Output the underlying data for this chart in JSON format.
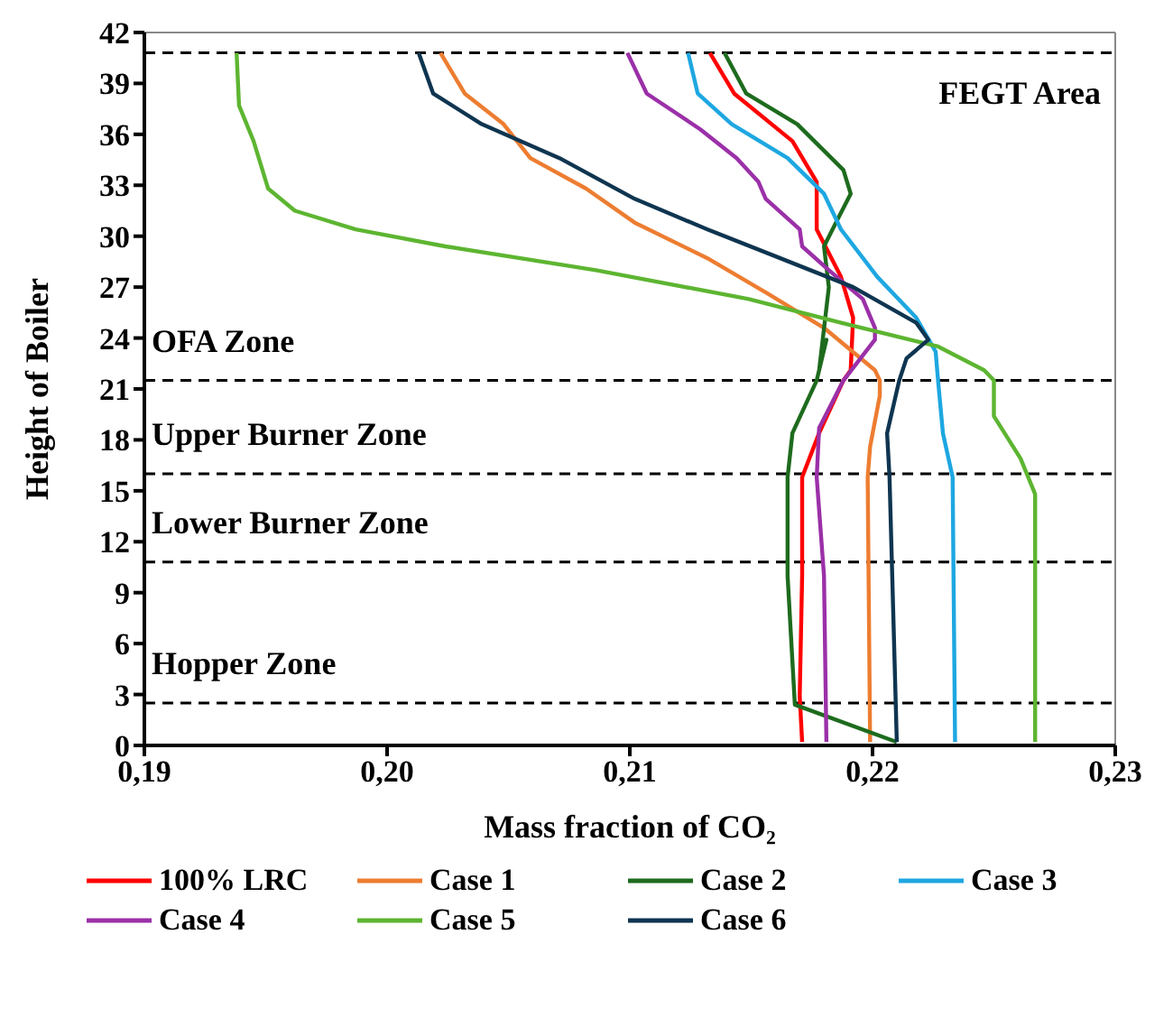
{
  "chart_data": {
    "type": "line",
    "xlabel": "Mass fraction of CO₂",
    "ylabel": "Height of Boiler",
    "xlim": [
      0.19,
      0.23
    ],
    "xticks": [
      {
        "value": 0.19,
        "label": "0,19"
      },
      {
        "value": 0.2,
        "label": "0,20"
      },
      {
        "value": 0.21,
        "label": "0,21"
      },
      {
        "value": 0.22,
        "label": "0,22"
      },
      {
        "value": 0.23,
        "label": "0,23"
      }
    ],
    "ylim": [
      0,
      42
    ],
    "yticks": [
      0,
      3,
      6,
      9,
      12,
      15,
      18,
      21,
      24,
      27,
      30,
      33,
      36,
      39,
      42
    ],
    "grid": false,
    "legend": "bottom",
    "marker": "none",
    "line_style": "solid",
    "series": [
      {
        "name": "100% LRC",
        "color": "#ff0000",
        "x": [
          0.2133,
          0.2143,
          0.2167,
          0.2177,
          0.2177,
          0.2187,
          0.2192,
          0.2191,
          0.2188,
          0.2178,
          0.2171,
          0.2171,
          0.217,
          0.2171
        ],
        "values": [
          40.8,
          38.4,
          35.6,
          33.2,
          30.4,
          27.6,
          25.2,
          22.1,
          21.5,
          18.4,
          15.8,
          10,
          2.9,
          0.2
        ]
      },
      {
        "name": "Case 1",
        "color": "#ed7d31",
        "x": [
          0.2022,
          0.2032,
          0.2048,
          0.2059,
          0.2082,
          0.2102,
          0.2132,
          0.2157,
          0.218,
          0.2201,
          0.2203,
          0.2203,
          0.2199,
          0.2198,
          0.2199
        ],
        "values": [
          40.8,
          38.4,
          36.6,
          34.6,
          32.8,
          30.8,
          28.7,
          26.6,
          24.6,
          22.1,
          21.5,
          20.6,
          17.6,
          15.8,
          0.2
        ]
      },
      {
        "name": "Case 2",
        "color": "#1e6b1e",
        "x": [
          0.2139,
          0.2148,
          0.2169,
          0.2188,
          0.2191,
          0.2186,
          0.218,
          0.2182,
          0.2178,
          0.2181,
          0.2177,
          0.2167,
          0.2165,
          0.2165,
          0.2168,
          0.221
        ],
        "values": [
          40.8,
          38.4,
          36.6,
          33.9,
          32.5,
          31.1,
          29.4,
          27,
          22.1,
          23.9,
          21.5,
          18.4,
          15.8,
          10,
          2.4,
          0.2
        ]
      },
      {
        "name": "Case 3",
        "color": "#1ea7e1",
        "x": [
          0.2124,
          0.2128,
          0.2142,
          0.2165,
          0.218,
          0.2187,
          0.2202,
          0.2218,
          0.2226,
          0.2227,
          0.2229,
          0.2233,
          0.2234
        ],
        "values": [
          40.8,
          38.4,
          36.6,
          34.6,
          32.5,
          30.4,
          27.6,
          25.2,
          23.2,
          21.5,
          18.4,
          15.8,
          0.2
        ]
      },
      {
        "name": "Case 4",
        "color": "#9b30a8",
        "x": [
          0.2099,
          0.2107,
          0.2129,
          0.2144,
          0.2153,
          0.2156,
          0.217,
          0.2171,
          0.2182,
          0.2196,
          0.2201,
          0.2201,
          0.2188,
          0.2178,
          0.2177,
          0.218,
          0.2181
        ],
        "values": [
          40.8,
          38.4,
          36.3,
          34.6,
          33.2,
          32.2,
          30.4,
          29.4,
          28,
          26.3,
          24.6,
          23.9,
          21.5,
          18.7,
          15.8,
          10,
          0.2
        ]
      },
      {
        "name": "Case 5",
        "color": "#5db531",
        "x": [
          0.1938,
          0.1939,
          0.1945,
          0.1951,
          0.1962,
          0.1987,
          0.2024,
          0.2086,
          0.2149,
          0.2187,
          0.2227,
          0.2246,
          0.225,
          0.225,
          0.2261,
          0.2267,
          0.2267
        ],
        "values": [
          40.8,
          37.7,
          35.6,
          32.8,
          31.5,
          30.4,
          29.4,
          28,
          26.3,
          24.9,
          23.5,
          22.1,
          21.5,
          19.4,
          16.9,
          14.8,
          0.2
        ]
      },
      {
        "name": "Case 6",
        "color": "#0f3550",
        "x": [
          0.2013,
          0.2019,
          0.2039,
          0.2071,
          0.2102,
          0.2132,
          0.2162,
          0.2192,
          0.2218,
          0.2223,
          0.2214,
          0.2211,
          0.2206,
          0.2207,
          0.221
        ],
        "values": [
          40.8,
          38.4,
          36.6,
          34.6,
          32.2,
          30.4,
          28.7,
          27,
          24.9,
          23.9,
          22.8,
          21.5,
          18.4,
          15.8,
          0.2
        ]
      }
    ],
    "ref_lines": [
      {
        "axis": "y",
        "value": 40.8,
        "color": "#000000",
        "line_style": "dashed"
      },
      {
        "axis": "y",
        "value": 21.5,
        "color": "#000000",
        "line_style": "dashed"
      },
      {
        "axis": "y",
        "value": 16,
        "color": "#000000",
        "line_style": "dashed"
      },
      {
        "axis": "y",
        "value": 10.8,
        "color": "#000000",
        "line_style": "dashed"
      },
      {
        "axis": "y",
        "value": 2.5,
        "color": "#000000",
        "line_style": "dashed"
      }
    ],
    "annotations": [
      "FEGT Area",
      "OFA Zone",
      "Upper Burner Zone",
      "Lower Burner Zone",
      "Hopper Zone"
    ]
  }
}
